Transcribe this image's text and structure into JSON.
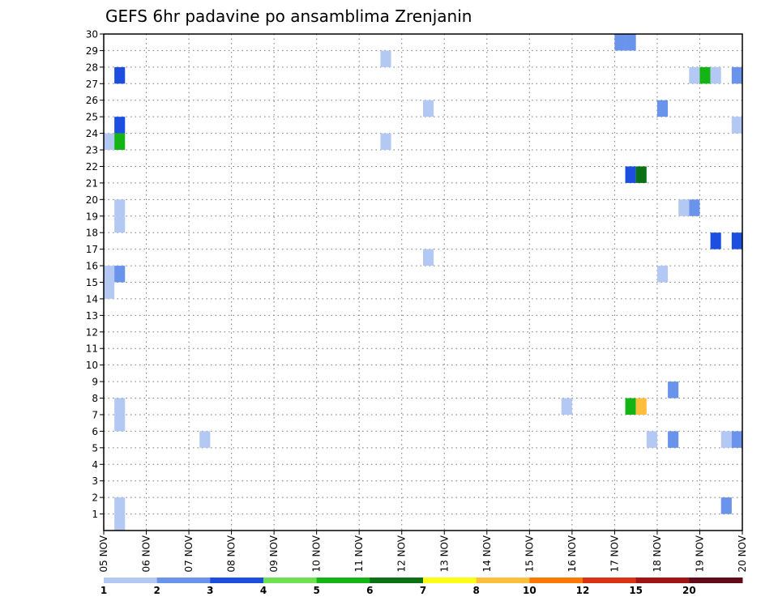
{
  "chart_data": {
    "type": "heatmap",
    "title": "GEFS 6hr padavine po ansamblima Zrenjanin",
    "xlabel": "",
    "ylabel": "",
    "x_ticks": [
      "05 NOV",
      "06 NOV",
      "07 NOV",
      "08 NOV",
      "09 NOV",
      "10 NOV",
      "11 NOV",
      "12 NOV",
      "13 NOV",
      "14 NOV",
      "15 NOV",
      "16 NOV",
      "17 NOV",
      "18 NOV",
      "19 NOV",
      "20 NOV"
    ],
    "x_range_days": [
      5,
      20
    ],
    "y_ticks": [
      "1",
      "2",
      "3",
      "4",
      "5",
      "6",
      "7",
      "8",
      "9",
      "10",
      "11",
      "12",
      "13",
      "14",
      "15",
      "16",
      "17",
      "18",
      "19",
      "20",
      "21",
      "22",
      "23",
      "24",
      "25",
      "26",
      "27",
      "28",
      "29",
      "30"
    ],
    "y_range": [
      0,
      30
    ],
    "grid": true,
    "colorbar": {
      "labels": [
        "1",
        "2",
        "3",
        "4",
        "5",
        "6",
        "7",
        "8",
        "10",
        "12",
        "15",
        "20"
      ],
      "colors": [
        "#b4c8f4",
        "#6a93ec",
        "#1c4ee0",
        "#6ee052",
        "#14b414",
        "#0a7114",
        "#ffff14",
        "#ffbe3c",
        "#ff7800",
        "#dc3214",
        "#a01414",
        "#620a1a"
      ]
    },
    "cells": [
      {
        "t": 5.25,
        "m": 0,
        "v": 1.5
      },
      {
        "t": 5.25,
        "m": 1,
        "v": 1.5
      },
      {
        "t": 5.25,
        "m": 6,
        "v": 1.5
      },
      {
        "t": 5.25,
        "m": 7,
        "v": 1.5
      },
      {
        "t": 5.0,
        "m": 14,
        "v": 1.5
      },
      {
        "t": 5.0,
        "m": 15,
        "v": 1.5
      },
      {
        "t": 5.25,
        "m": 15,
        "v": 2.5
      },
      {
        "t": 5.25,
        "m": 18,
        "v": 1.5
      },
      {
        "t": 5.25,
        "m": 19,
        "v": 1.5
      },
      {
        "t": 5.0,
        "m": 23,
        "v": 1.5
      },
      {
        "t": 5.25,
        "m": 23,
        "v": 5.5
      },
      {
        "t": 5.25,
        "m": 24,
        "v": 3.5
      },
      {
        "t": 5.25,
        "m": 27,
        "v": 3.5
      },
      {
        "t": 7.25,
        "m": 5,
        "v": 1.5
      },
      {
        "t": 11.5,
        "m": 23,
        "v": 1.5
      },
      {
        "t": 11.5,
        "m": 28,
        "v": 1.5
      },
      {
        "t": 12.5,
        "m": 16,
        "v": 1.5
      },
      {
        "t": 12.5,
        "m": 25,
        "v": 1.5
      },
      {
        "t": 15.75,
        "m": 7,
        "v": 1.5
      },
      {
        "t": 17.0,
        "m": 29,
        "v": 2.5
      },
      {
        "t": 17.25,
        "m": 29,
        "v": 2.5
      },
      {
        "t": 17.25,
        "m": 7,
        "v": 5.5
      },
      {
        "t": 17.5,
        "m": 7,
        "v": 8.5
      },
      {
        "t": 17.25,
        "m": 21,
        "v": 3.5
      },
      {
        "t": 17.5,
        "m": 21,
        "v": 6.5
      },
      {
        "t": 17.75,
        "m": 5,
        "v": 1.5
      },
      {
        "t": 18.0,
        "m": 15,
        "v": 1.5
      },
      {
        "t": 18.0,
        "m": 25,
        "v": 2.5
      },
      {
        "t": 18.25,
        "m": 5,
        "v": 2.5
      },
      {
        "t": 18.25,
        "m": 8,
        "v": 2.5
      },
      {
        "t": 18.5,
        "m": 19,
        "v": 1.5
      },
      {
        "t": 18.75,
        "m": 19,
        "v": 2.5
      },
      {
        "t": 18.75,
        "m": 27,
        "v": 1.5
      },
      {
        "t": 19.0,
        "m": 27,
        "v": 5.5
      },
      {
        "t": 19.25,
        "m": 27,
        "v": 1.5
      },
      {
        "t": 19.25,
        "m": 17,
        "v": 3.5
      },
      {
        "t": 19.5,
        "m": 1,
        "v": 2.5
      },
      {
        "t": 19.5,
        "m": 5,
        "v": 1.5
      },
      {
        "t": 19.75,
        "m": 5,
        "v": 2.5
      },
      {
        "t": 19.75,
        "m": 17,
        "v": 3.5
      },
      {
        "t": 19.75,
        "m": 27,
        "v": 2.5
      },
      {
        "t": 19.75,
        "m": 24,
        "v": 1.5
      }
    ]
  }
}
